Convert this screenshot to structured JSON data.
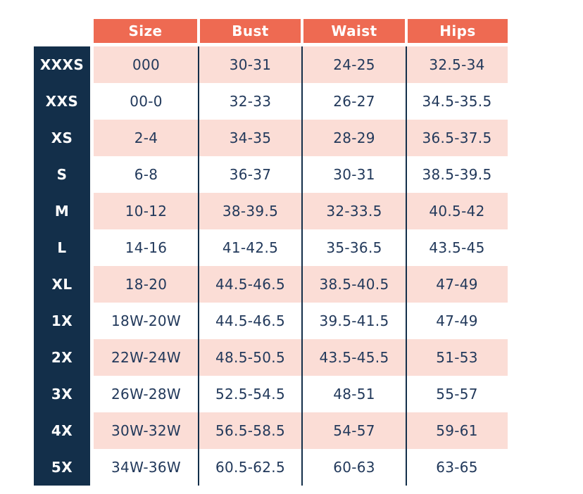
{
  "table": {
    "columns": [
      "Size",
      "Bust",
      "Waist",
      "Hips"
    ],
    "rows": [
      {
        "label": "XXXS",
        "size": "000",
        "bust": "30-31",
        "waist": "24-25",
        "hips": "32.5-34"
      },
      {
        "label": "XXS",
        "size": "00-0",
        "bust": "32-33",
        "waist": "26-27",
        "hips": "34.5-35.5"
      },
      {
        "label": "XS",
        "size": "2-4",
        "bust": "34-35",
        "waist": "28-29",
        "hips": "36.5-37.5"
      },
      {
        "label": "S",
        "size": "6-8",
        "bust": "36-37",
        "waist": "30-31",
        "hips": "38.5-39.5"
      },
      {
        "label": "M",
        "size": "10-12",
        "bust": "38-39.5",
        "waist": "32-33.5",
        "hips": "40.5-42"
      },
      {
        "label": "L",
        "size": "14-16",
        "bust": "41-42.5",
        "waist": "35-36.5",
        "hips": "43.5-45"
      },
      {
        "label": "XL",
        "size": "18-20",
        "bust": "44.5-46.5",
        "waist": "38.5-40.5",
        "hips": "47-49"
      },
      {
        "label": "1X",
        "size": "18W-20W",
        "bust": "44.5-46.5",
        "waist": "39.5-41.5",
        "hips": "47-49"
      },
      {
        "label": "2X",
        "size": "22W-24W",
        "bust": "48.5-50.5",
        "waist": "43.5-45.5",
        "hips": "51-53"
      },
      {
        "label": "3X",
        "size": "26W-28W",
        "bust": "52.5-54.5",
        "waist": "48-51",
        "hips": "55-57"
      },
      {
        "label": "4X",
        "size": "30W-32W",
        "bust": "56.5-58.5",
        "waist": "54-57",
        "hips": "59-61"
      },
      {
        "label": "5X",
        "size": "34W-36W",
        "bust": "60.5-62.5",
        "waist": "60-63",
        "hips": "63-65"
      }
    ]
  },
  "colors": {
    "header_bg": "#ee6a52",
    "header_text": "#ffffff",
    "label_column_bg": "#132f4a",
    "label_text": "#ffffff",
    "alt_row_bg": "#fbddd6",
    "row_bg": "#ffffff",
    "body_text": "#22395b",
    "divider": "#132f4a"
  },
  "chart_data": {
    "type": "table",
    "title": "",
    "columns": [
      "",
      "Size",
      "Bust",
      "Waist",
      "Hips"
    ],
    "rows": [
      [
        "XXXS",
        "000",
        "30-31",
        "24-25",
        "32.5-34"
      ],
      [
        "XXS",
        "00-0",
        "32-33",
        "26-27",
        "34.5-35.5"
      ],
      [
        "XS",
        "2-4",
        "34-35",
        "28-29",
        "36.5-37.5"
      ],
      [
        "S",
        "6-8",
        "36-37",
        "30-31",
        "38.5-39.5"
      ],
      [
        "M",
        "10-12",
        "38-39.5",
        "32-33.5",
        "40.5-42"
      ],
      [
        "L",
        "14-16",
        "41-42.5",
        "35-36.5",
        "43.5-45"
      ],
      [
        "XL",
        "18-20",
        "44.5-46.5",
        "38.5-40.5",
        "47-49"
      ],
      [
        "1X",
        "18W-20W",
        "44.5-46.5",
        "39.5-41.5",
        "47-49"
      ],
      [
        "2X",
        "22W-24W",
        "48.5-50.5",
        "43.5-45.5",
        "51-53"
      ],
      [
        "3X",
        "26W-28W",
        "52.5-54.5",
        "48-51",
        "55-57"
      ],
      [
        "4X",
        "30W-32W",
        "56.5-58.5",
        "54-57",
        "59-61"
      ],
      [
        "5X",
        "34W-36W",
        "60.5-62.5",
        "60-63",
        "63-65"
      ]
    ],
    "layout_hints": {
      "alternating_row_shading": "pink on rows 1,3,5,7,9,11 (1-indexed)",
      "label_column_style": "dark navy with white bold text",
      "header_style": "coral background, white bold text",
      "grid": "vertical navy dividers between data columns only"
    }
  }
}
